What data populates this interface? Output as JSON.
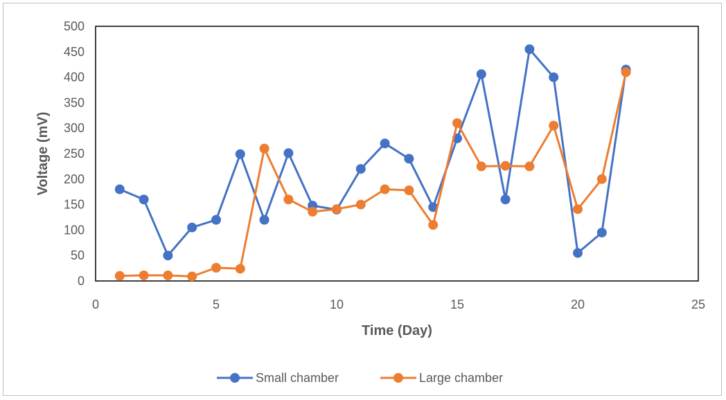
{
  "chart_data": {
    "type": "line",
    "title": "",
    "xlabel": "Time (Day)",
    "ylabel": "Voltage (mV)",
    "xlim": [
      0,
      25
    ],
    "ylim": [
      0,
      500
    ],
    "xticks": [
      0,
      5,
      10,
      15,
      20,
      25
    ],
    "yticks": [
      0,
      50,
      100,
      150,
      200,
      250,
      300,
      350,
      400,
      450,
      500
    ],
    "x": [
      1,
      2,
      3,
      4,
      5,
      6,
      7,
      8,
      9,
      10,
      11,
      12,
      13,
      14,
      15,
      16,
      17,
      18,
      19,
      20,
      21,
      22
    ],
    "grid": false,
    "legend_position": "bottom",
    "series": [
      {
        "name": "Small chamber",
        "color": "#4472C4",
        "values": [
          180,
          160,
          50,
          105,
          120,
          249,
          120,
          251,
          148,
          140,
          220,
          270,
          240,
          145,
          280,
          406,
          160,
          455,
          400,
          55,
          95,
          415
        ]
      },
      {
        "name": "Large chamber",
        "color": "#ED7D31",
        "values": [
          10,
          11,
          11,
          9,
          26,
          24,
          260,
          160,
          136,
          141,
          150,
          180,
          178,
          110,
          310,
          225,
          226,
          225,
          305,
          141,
          200,
          410
        ]
      }
    ]
  }
}
